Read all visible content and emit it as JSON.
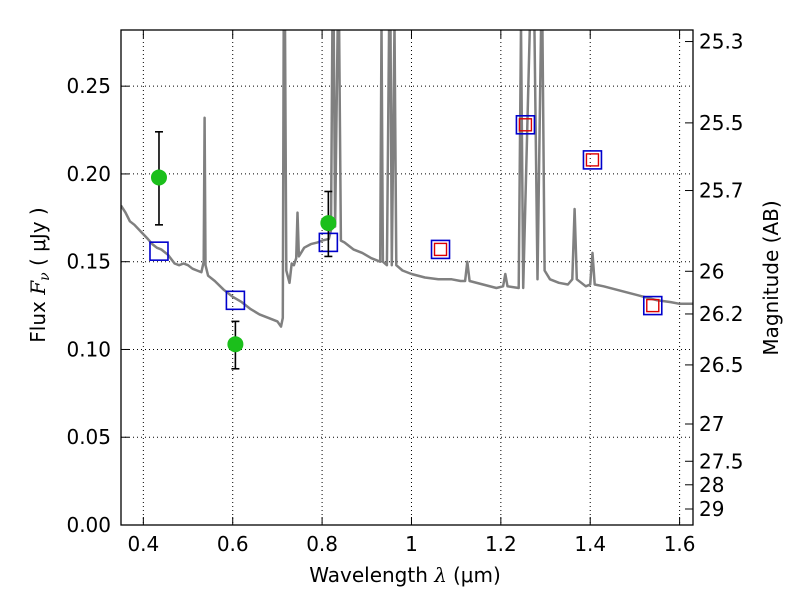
{
  "chart_data": {
    "type": "scatter",
    "xlabel_prefix": "Wavelength  ",
    "xlabel_symbol": "λ",
    "xlabel_unit": "(μm)",
    "ylabel_prefix": "Flux  ",
    "ylabel_symbol": "F",
    "ylabel_sub": "ν",
    "ylabel_unit": "  ( μJy )",
    "y2label": "Magnitude (AB)",
    "xlim": [
      0.35,
      1.63
    ],
    "ylim": [
      0.0,
      0.282
    ],
    "grid": true,
    "x_ticks": [
      0.4,
      0.6,
      0.8,
      1.0,
      1.2,
      1.4,
      1.6
    ],
    "x_tick_labels": [
      "0.4",
      "0.6",
      "0.8",
      "1",
      "1.2",
      "1.4",
      "1.6"
    ],
    "y_ticks": [
      0.0,
      0.05,
      0.1,
      0.15,
      0.2,
      0.25
    ],
    "y_tick_labels": [
      "0.00",
      "0.05",
      "0.10",
      "0.15",
      "0.20",
      "0.25"
    ],
    "mag_ticks": [
      "25.3",
      "25.5",
      "25.7",
      "26",
      "26.2",
      "26.5",
      "27",
      "27.5",
      "28",
      "29"
    ],
    "colors": {
      "spectrum": "#808080",
      "observed": "#1bbf1b",
      "model_box": "#0000cc",
      "model_box_red": "#dd0000",
      "errorbar": "#000000"
    },
    "series": [
      {
        "marker": "circle",
        "points": [
          {
            "x": 0.435,
            "y": 0.198,
            "err_low": 0.171,
            "err_high": 0.224
          },
          {
            "x": 0.606,
            "y": 0.103,
            "err_low": 0.089,
            "err_high": 0.116
          },
          {
            "x": 0.814,
            "y": 0.172,
            "err_low": 0.153,
            "err_high": 0.19
          }
        ]
      },
      {
        "marker": "square",
        "points": [
          {
            "x": 0.435,
            "y": 0.156,
            "red_inner": false
          },
          {
            "x": 0.606,
            "y": 0.128,
            "red_inner": false
          },
          {
            "x": 0.814,
            "y": 0.161,
            "red_inner": false
          },
          {
            "x": 1.065,
            "y": 0.157,
            "red_inner": true
          },
          {
            "x": 1.255,
            "y": 0.228,
            "red_inner": true
          },
          {
            "x": 1.405,
            "y": 0.208,
            "red_inner": true
          },
          {
            "x": 1.54,
            "y": 0.125,
            "red_inner": true
          }
        ]
      }
    ],
    "spectrum": [
      [
        0.35,
        0.182
      ],
      [
        0.36,
        0.178
      ],
      [
        0.37,
        0.173
      ],
      [
        0.38,
        0.171
      ],
      [
        0.395,
        0.167
      ],
      [
        0.41,
        0.163
      ],
      [
        0.42,
        0.16
      ],
      [
        0.43,
        0.158
      ],
      [
        0.44,
        0.157
      ],
      [
        0.455,
        0.154
      ],
      [
        0.47,
        0.149
      ],
      [
        0.48,
        0.148
      ],
      [
        0.49,
        0.149
      ],
      [
        0.5,
        0.148
      ],
      [
        0.51,
        0.146
      ],
      [
        0.52,
        0.145
      ],
      [
        0.53,
        0.144
      ],
      [
        0.535,
        0.15
      ],
      [
        0.537,
        0.232
      ],
      [
        0.539,
        0.148
      ],
      [
        0.545,
        0.142
      ],
      [
        0.56,
        0.139
      ],
      [
        0.58,
        0.134
      ],
      [
        0.6,
        0.13
      ],
      [
        0.62,
        0.127
      ],
      [
        0.64,
        0.123
      ],
      [
        0.66,
        0.12
      ],
      [
        0.68,
        0.118
      ],
      [
        0.7,
        0.116
      ],
      [
        0.708,
        0.113
      ],
      [
        0.712,
        0.118
      ],
      [
        0.714,
        0.285
      ],
      [
        0.717,
        0.285
      ],
      [
        0.72,
        0.145
      ],
      [
        0.727,
        0.138
      ],
      [
        0.732,
        0.149
      ],
      [
        0.737,
        0.148
      ],
      [
        0.742,
        0.152
      ],
      [
        0.745,
        0.178
      ],
      [
        0.748,
        0.153
      ],
      [
        0.76,
        0.158
      ],
      [
        0.775,
        0.16
      ],
      [
        0.79,
        0.161
      ],
      [
        0.8,
        0.162
      ],
      [
        0.815,
        0.163
      ],
      [
        0.82,
        0.168
      ],
      [
        0.823,
        0.285
      ],
      [
        0.826,
        0.285
      ],
      [
        0.829,
        0.17
      ],
      [
        0.835,
        0.285
      ],
      [
        0.838,
        0.285
      ],
      [
        0.842,
        0.162
      ],
      [
        0.85,
        0.161
      ],
      [
        0.87,
        0.157
      ],
      [
        0.89,
        0.155
      ],
      [
        0.91,
        0.152
      ],
      [
        0.93,
        0.15
      ],
      [
        0.933,
        0.285
      ],
      [
        0.936,
        0.15
      ],
      [
        0.945,
        0.148
      ],
      [
        0.95,
        0.285
      ],
      [
        0.953,
        0.285
      ],
      [
        0.956,
        0.148
      ],
      [
        0.962,
        0.285
      ],
      [
        0.966,
        0.148
      ],
      [
        0.98,
        0.145
      ],
      [
        1.0,
        0.143
      ],
      [
        1.03,
        0.141
      ],
      [
        1.06,
        0.14
      ],
      [
        1.09,
        0.14
      ],
      [
        1.11,
        0.139
      ],
      [
        1.12,
        0.139
      ],
      [
        1.125,
        0.15
      ],
      [
        1.13,
        0.139
      ],
      [
        1.16,
        0.137
      ],
      [
        1.19,
        0.135
      ],
      [
        1.205,
        0.136
      ],
      [
        1.21,
        0.143
      ],
      [
        1.215,
        0.136
      ],
      [
        1.24,
        0.135
      ],
      [
        1.245,
        0.285
      ],
      [
        1.25,
        0.135
      ],
      [
        1.265,
        0.285
      ],
      [
        1.275,
        0.285
      ],
      [
        1.282,
        0.14
      ],
      [
        1.29,
        0.285
      ],
      [
        1.293,
        0.285
      ],
      [
        1.298,
        0.145
      ],
      [
        1.31,
        0.14
      ],
      [
        1.33,
        0.138
      ],
      [
        1.35,
        0.137
      ],
      [
        1.36,
        0.14
      ],
      [
        1.365,
        0.18
      ],
      [
        1.37,
        0.14
      ],
      [
        1.39,
        0.136
      ],
      [
        1.4,
        0.137
      ],
      [
        1.405,
        0.155
      ],
      [
        1.41,
        0.137
      ],
      [
        1.43,
        0.136
      ],
      [
        1.46,
        0.134
      ],
      [
        1.49,
        0.132
      ],
      [
        1.52,
        0.13
      ],
      [
        1.55,
        0.128
      ],
      [
        1.58,
        0.127
      ],
      [
        1.6,
        0.126
      ],
      [
        1.63,
        0.126
      ]
    ]
  }
}
